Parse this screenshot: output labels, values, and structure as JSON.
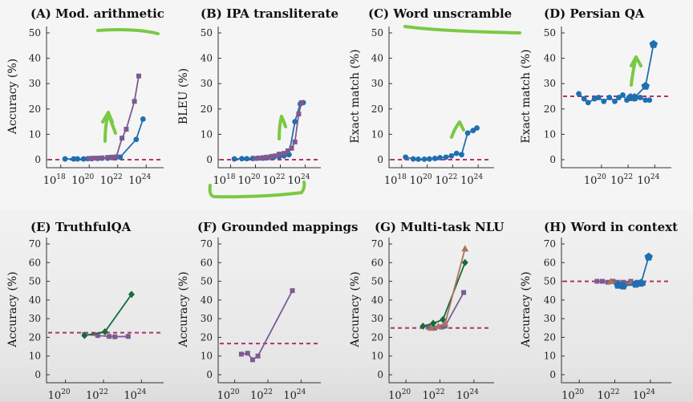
{
  "colors": {
    "blue": "#1f6fb0",
    "purple": "#7d5a92",
    "green": "#156b3c",
    "brown": "#a9745c",
    "baseline": "#b0336a",
    "annotation": "#7ac943"
  },
  "chart_data": [
    {
      "type": "line",
      "title": "(A) Mod. arithmetic",
      "ylabel": "Accuracy (%)",
      "x_scale": "log",
      "xlim": [
        1e+17,
        1e+25
      ],
      "ylim": [
        0,
        50
      ],
      "yticks": [
        "0",
        "10",
        "20",
        "30",
        "40",
        "50"
      ],
      "xticks": [
        "10^18",
        "10^20",
        "10^22",
        "10^24"
      ],
      "baseline": 0,
      "series": [
        {
          "color": "blue",
          "marker": "circle",
          "x": [
            2e+18,
            8e+18,
            1.5e+19,
            4e+19,
            8e+19,
            1.5e+20,
            4e+20,
            8e+20,
            2e+21,
            4e+21,
            8e+21,
            1.5e+22,
            2e+23,
            6e+23
          ],
          "y": [
            0.3,
            0.3,
            0.3,
            0.3,
            0.4,
            0.4,
            0.5,
            0.6,
            0.6,
            0.8,
            1.0,
            1.0,
            8,
            16
          ]
        },
        {
          "color": "purple",
          "marker": "square",
          "x": [
            1e+20,
            2e+20,
            4e+20,
            8e+20,
            2e+21,
            4e+21,
            8e+21,
            2e+22,
            4e+22,
            1.5e+23,
            3e+23
          ],
          "y": [
            0.5,
            0.6,
            0.6,
            0.7,
            0.9,
            1.0,
            1.1,
            8.5,
            12,
            23,
            33
          ]
        }
      ]
    },
    {
      "type": "line",
      "title": "(B) IPA transliterate",
      "ylabel": "BLEU (%)",
      "x_scale": "log",
      "xlim": [
        1e+17,
        1e+25
      ],
      "ylim": [
        0,
        50
      ],
      "yticks": [
        "0",
        "10",
        "20",
        "30",
        "40",
        "50"
      ],
      "xticks": [
        "10^18",
        "10^20",
        "10^22",
        "10^24"
      ],
      "baseline": 0,
      "series": [
        {
          "color": "blue",
          "marker": "circle",
          "x": [
            2e+18,
            8e+18,
            2e+19,
            6e+19,
            1.5e+20,
            4e+20,
            1e+21,
            3e+21,
            8e+21,
            2e+22,
            5e+22,
            1.5e+23,
            4e+23,
            7e+23
          ],
          "y": [
            0.3,
            0.4,
            0.4,
            0.5,
            0.6,
            0.6,
            0.8,
            1.0,
            1.2,
            1.5,
            2,
            15,
            22,
            22.5
          ]
        },
        {
          "color": "purple",
          "marker": "square",
          "x": [
            1e+20,
            2e+20,
            4e+20,
            8e+20,
            2e+21,
            4e+21,
            8e+21,
            2e+22,
            4e+22,
            8e+22,
            1.5e+23,
            3e+23,
            5e+23
          ],
          "y": [
            0.5,
            0.6,
            0.8,
            1.0,
            1.3,
            1.5,
            2.2,
            2.5,
            3.5,
            4.5,
            7,
            18,
            22.5
          ]
        }
      ]
    },
    {
      "type": "line",
      "title": "(C) Word unscramble",
      "ylabel": "Exact match (%)",
      "x_scale": "log",
      "xlim": [
        1e+17,
        1e+25
      ],
      "ylim": [
        0,
        50
      ],
      "yticks": [
        "0",
        "10",
        "20",
        "30",
        "40",
        "50"
      ],
      "xticks": [
        "10^18",
        "10^20",
        "10^22",
        "10^24"
      ],
      "baseline": 0,
      "series": [
        {
          "color": "blue",
          "marker": "circle",
          "x": [
            2e+18,
            8e+18,
            2e+19,
            6e+19,
            1.5e+20,
            4e+20,
            1e+21,
            3e+21,
            8e+21,
            2e+22,
            5e+22,
            1.5e+23,
            4e+23,
            8e+23
          ],
          "y": [
            1.0,
            0.3,
            0.2,
            0.2,
            0.3,
            0.5,
            0.8,
            1.0,
            1.5,
            2.5,
            2,
            10.5,
            11.5,
            12.5
          ]
        }
      ]
    },
    {
      "type": "line",
      "title": "(D) Persian QA",
      "ylabel": "Exact match (%)",
      "x_scale": "log",
      "xlim": [
        1e+17,
        1e+25
      ],
      "ylim": [
        0,
        50
      ],
      "yticks": [
        "0",
        "10",
        "20",
        "30",
        "40",
        "50"
      ],
      "xticks": [
        "10^20",
        "10^22",
        "10^24"
      ],
      "baseline": 25,
      "series": [
        {
          "color": "blue",
          "marker": "circle",
          "x": [
            2e+18,
            5e+18,
            1e+19,
            3e+19,
            6e+19,
            1.5e+20,
            4e+20,
            1e+21,
            2e+21,
            4e+21,
            8e+21,
            1.5e+22,
            3e+22,
            8e+22,
            2e+23,
            4e+23
          ],
          "y": [
            26,
            24,
            22.5,
            24,
            24.5,
            23,
            24.5,
            23,
            24.5,
            25.5,
            23.5,
            25,
            24,
            24.5,
            23.5,
            23.5
          ]
        },
        {
          "color": "blue",
          "marker": "pentagon",
          "x": [
            1.5e+22,
            3e+22,
            2e+23,
            8e+23
          ],
          "y": [
            24.5,
            24.5,
            29,
            45.5
          ]
        }
      ]
    },
    {
      "type": "line",
      "title": "(E) TruthfulQA",
      "ylabel": "Accuracy (%)",
      "x_scale": "log",
      "xlim": [
        1e+19,
        1e+25
      ],
      "ylim": [
        0,
        70
      ],
      "yticks": [
        "0",
        "10",
        "20",
        "30",
        "40",
        "50",
        "60",
        "70"
      ],
      "xticks": [
        "10^20",
        "10^22",
        "10^24"
      ],
      "baseline": 22.5,
      "series": [
        {
          "color": "purple",
          "marker": "square",
          "x": [
            1e+21,
            5e+21,
            2e+22,
            4e+22,
            2e+23
          ],
          "y": [
            21.5,
            21,
            20.5,
            20.3,
            20.5
          ]
        },
        {
          "color": "green",
          "marker": "diamond",
          "x": [
            1e+21,
            1.2e+22,
            3e+23
          ],
          "y": [
            21,
            23,
            43
          ]
        }
      ]
    },
    {
      "type": "line",
      "title": "(F) Grounded mappings",
      "ylabel": "Accuracy (%)",
      "x_scale": "log",
      "xlim": [
        1e+19,
        1e+25
      ],
      "ylim": [
        0,
        70
      ],
      "yticks": [
        "0",
        "10",
        "20",
        "30",
        "40",
        "50",
        "60",
        "70"
      ],
      "xticks": [
        "10^20",
        "10^22",
        "10^24"
      ],
      "baseline": 16.7,
      "series": [
        {
          "color": "purple",
          "marker": "square",
          "x": [
            2.5e+20,
            6e+20,
            1.2e+21,
            2.5e+21,
            3e+23
          ],
          "y": [
            11,
            11.5,
            8,
            10,
            45
          ]
        }
      ]
    },
    {
      "type": "line",
      "title": "(G) Multi-task NLU",
      "ylabel": "Accuracy (%)",
      "x_scale": "log",
      "xlim": [
        1e+19,
        1e+25
      ],
      "ylim": [
        0,
        70
      ],
      "yticks": [
        "0",
        "10",
        "20",
        "30",
        "40",
        "50",
        "60",
        "70"
      ],
      "xticks": [
        "10^20",
        "10^22",
        "10^24"
      ],
      "baseline": 25,
      "series": [
        {
          "color": "purple",
          "marker": "square",
          "x": [
            2e+21,
            5e+21,
            1.2e+22,
            2e+22,
            2.5e+23
          ],
          "y": [
            25.5,
            25,
            25.5,
            26,
            44
          ]
        },
        {
          "color": "green",
          "marker": "diamond",
          "x": [
            1e+21,
            4e+21,
            1.5e+22,
            3e+23
          ],
          "y": [
            26,
            27.5,
            29.5,
            60
          ]
        },
        {
          "color": "brown",
          "marker": "triangle",
          "x": [
            3e+21,
            8e+21,
            2e+22,
            3e+23
          ],
          "y": [
            25,
            26,
            27.5,
            67.5
          ]
        }
      ]
    },
    {
      "type": "line",
      "title": "(H) Word in context",
      "ylabel": "Accuracy (%)",
      "x_scale": "log",
      "xlim": [
        1e+19,
        1e+25
      ],
      "ylim": [
        0,
        70
      ],
      "yticks": [
        "0",
        "10",
        "20",
        "30",
        "40",
        "50",
        "60",
        "70"
      ],
      "xticks": [
        "10^20",
        "10^22",
        "10^24"
      ],
      "baseline": 50,
      "series": [
        {
          "color": "purple",
          "marker": "square",
          "x": [
            1e+21,
            2e+21,
            4e+21,
            8e+21,
            1.5e+22,
            3e+22,
            5e+22,
            8e+22,
            2e+23,
            4e+23
          ],
          "y": [
            50,
            50,
            49.5,
            50,
            49.5,
            49.5,
            49,
            50,
            49.5,
            49
          ]
        },
        {
          "color": "brown",
          "marker": "triangle",
          "x": [
            6e+21,
            1.5e+22,
            3e+22,
            8e+22,
            3e+23
          ],
          "y": [
            50,
            49,
            48.5,
            49,
            49.5
          ]
        },
        {
          "color": "blue",
          "marker": "pentagon",
          "x": [
            1.5e+22,
            3e+22,
            1.5e+23,
            3e+23,
            8e+23
          ],
          "y": [
            48,
            47.5,
            48.5,
            49,
            63
          ]
        }
      ]
    }
  ]
}
